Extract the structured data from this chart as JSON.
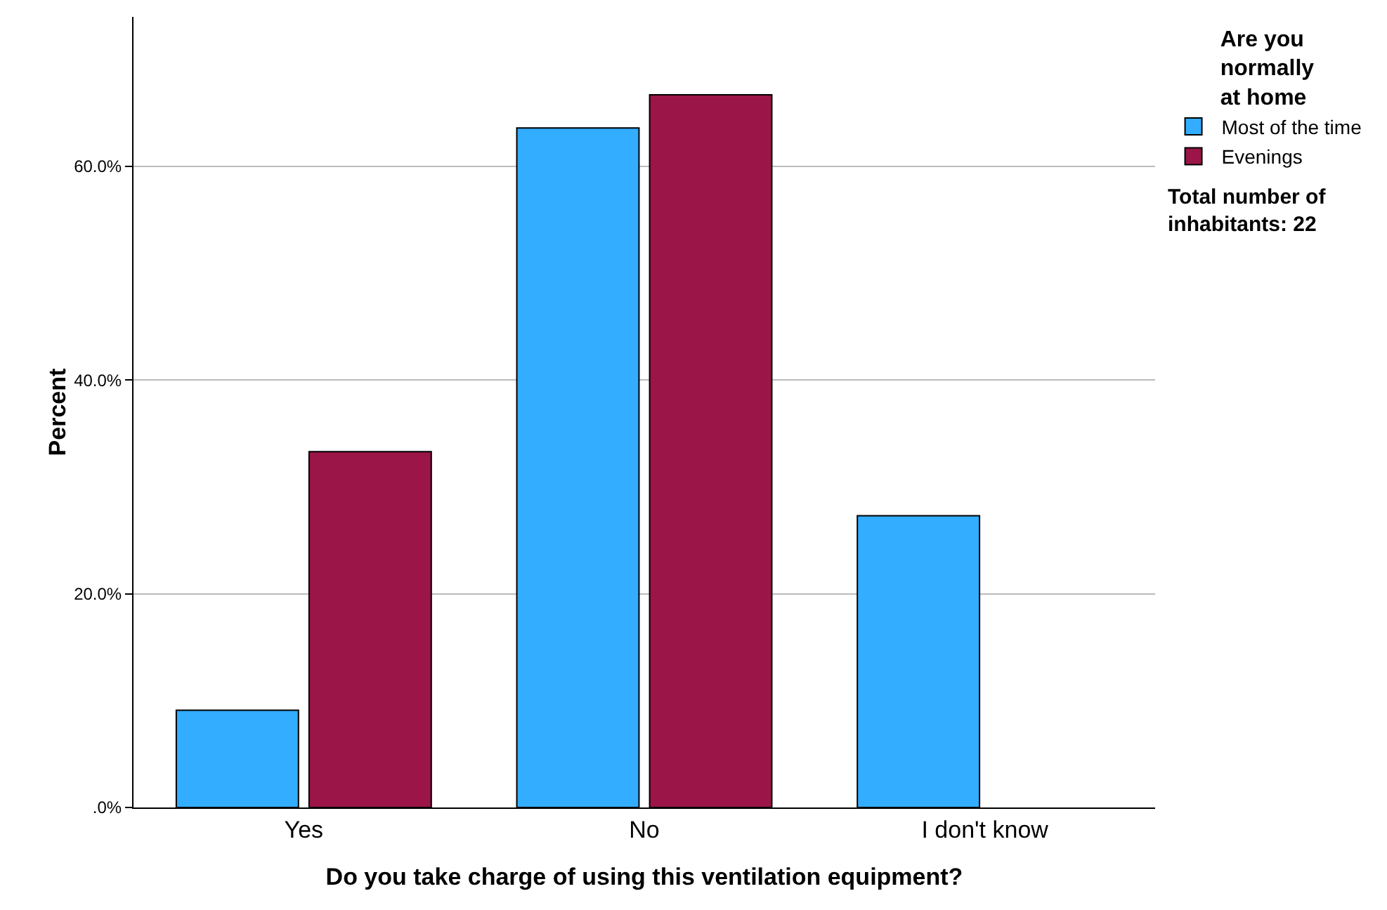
{
  "chart_data": {
    "type": "bar",
    "categories": [
      "Yes",
      "No",
      "I don't know"
    ],
    "series": [
      {
        "name": "Most of the time",
        "color": "#33adff",
        "values": [
          9.1,
          63.6,
          27.3
        ]
      },
      {
        "name": "Evenings",
        "color": "#9b1548",
        "values": [
          33.3,
          66.7,
          null
        ]
      }
    ],
    "xlabel": "Do you take charge of using this ventilation equipment?",
    "ylabel": "Percent",
    "legend_title": "Are you normally at home",
    "legend": "top right",
    "annotations": [
      "Total number of inhabitants: 22"
    ],
    "ylim": [
      0,
      74
    ],
    "yticks": [
      {
        "value": 0,
        "label": ".0%"
      },
      {
        "value": 20,
        "label": "20.0%"
      },
      {
        "value": 40,
        "label": "40.0%"
      },
      {
        "value": 60,
        "label": "60.0%"
      }
    ],
    "grid": "y"
  }
}
